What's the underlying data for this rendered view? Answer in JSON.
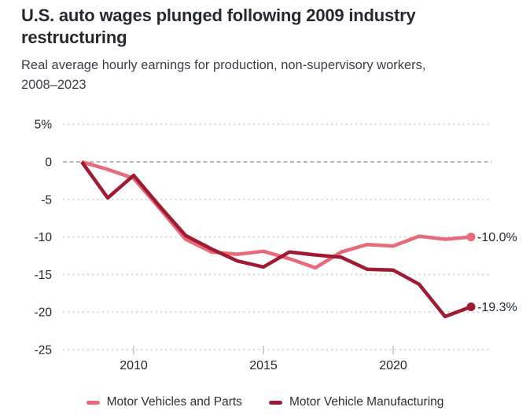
{
  "header": {
    "title": "U.S. auto wages plunged following 2009 industry restructuring",
    "subtitle": "Real average hourly earnings for production, non-supervisory workers, 2008–2023"
  },
  "chart_data": {
    "type": "line",
    "x": [
      2008,
      2009,
      2010,
      2011,
      2012,
      2013,
      2014,
      2015,
      2016,
      2017,
      2018,
      2019,
      2020,
      2021,
      2022,
      2023
    ],
    "series": [
      {
        "name": "Motor Vehicles and Parts",
        "color": "#e8697a",
        "values": [
          0,
          -1.0,
          -2.2,
          -6.2,
          -10.3,
          -12.0,
          -12.3,
          -11.9,
          -12.9,
          -14.1,
          -12.0,
          -11.0,
          -11.2,
          -9.9,
          -10.3,
          -10.0
        ],
        "end_label": "-10.0%"
      },
      {
        "name": "Motor Vehicle Manufacturing",
        "color": "#9e1b32",
        "values": [
          0,
          -4.8,
          -1.8,
          -5.9,
          -9.8,
          -11.6,
          -13.2,
          -14.0,
          -12.0,
          -12.4,
          -12.7,
          -14.3,
          -14.4,
          -16.3,
          -20.6,
          -19.3
        ],
        "end_label": "-19.3%"
      }
    ],
    "ylim": [
      -25,
      5
    ],
    "yticks": [
      {
        "value": 5,
        "label": "5%"
      },
      {
        "value": 0,
        "label": "0"
      },
      {
        "value": -5,
        "label": "-5"
      },
      {
        "value": -10,
        "label": "-10"
      },
      {
        "value": -15,
        "label": "-15"
      },
      {
        "value": -20,
        "label": "-20"
      },
      {
        "value": -25,
        "label": "-25"
      }
    ],
    "xticks": [
      {
        "value": 2010,
        "label": "2010"
      },
      {
        "value": 2015,
        "label": "2015"
      },
      {
        "value": 2020,
        "label": "2020"
      }
    ],
    "grid": "horizontal-dotted",
    "legend_position": "bottom",
    "colors": {
      "grid": "#d9d9d9",
      "zero_line": "#9c9c9c",
      "axis_tick": "#c0c0c0",
      "tick_text": "#23272e",
      "end_label_text": "#1e2734"
    }
  }
}
